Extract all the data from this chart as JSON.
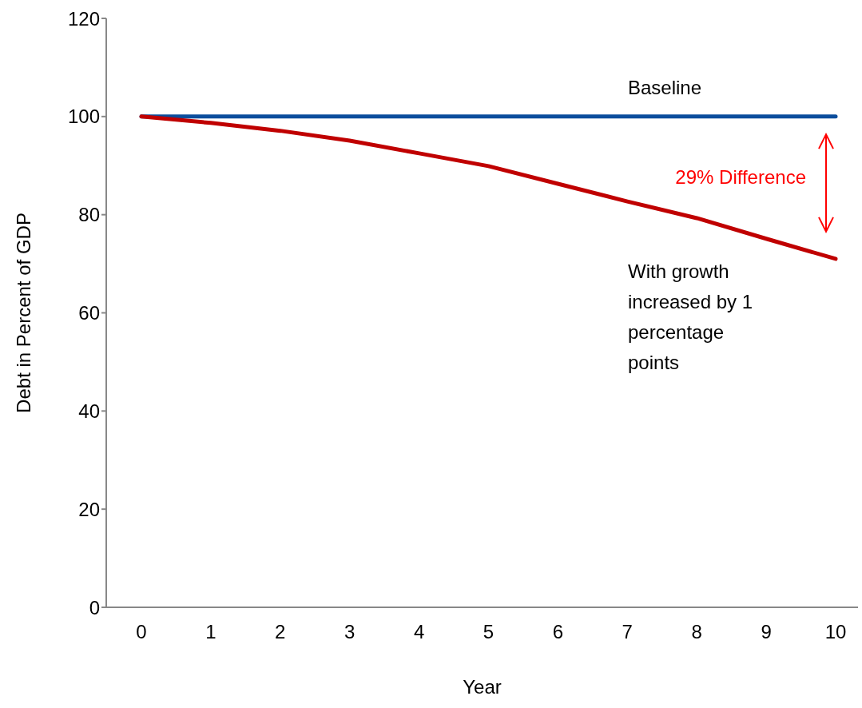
{
  "chart_data": {
    "type": "line",
    "xlabel": "Year",
    "ylabel": "Debt in Percent of GDP",
    "categories": [
      "0",
      "1",
      "2",
      "3",
      "4",
      "5",
      "6",
      "7",
      "8",
      "9",
      "10"
    ],
    "series": [
      {
        "name": "Baseline",
        "color": "#0a4d9c",
        "values": [
          100,
          100,
          100,
          100,
          100,
          100,
          100,
          100,
          100,
          100,
          100
        ]
      },
      {
        "name": "With growth increased by 1 percentage points",
        "color": "#c00000",
        "values": [
          100,
          98.7,
          97.1,
          95.1,
          92.5,
          89.9,
          86.3,
          82.7,
          79.3,
          75.1,
          71
        ]
      }
    ],
    "ylim": [
      0,
      120
    ],
    "yticks": [
      0,
      20,
      40,
      60,
      80,
      100,
      120
    ],
    "marker": "none",
    "line_style": "solid",
    "annotations": [
      "29% Difference"
    ]
  }
}
